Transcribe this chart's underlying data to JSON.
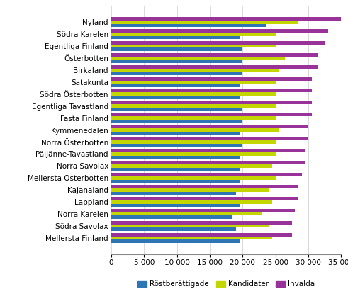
{
  "regions": [
    "Nyland",
    "Södra Karelen",
    "Egentliga Finland",
    "Österbotten",
    "Birkaland",
    "Satakunta",
    "Södra Österbotten",
    "Egentliga Tavastland",
    "Fasta Finland",
    "Kymmenedalen",
    "Norra Österbotten",
    "Päijänne-Tavastland",
    "Norra Savolax",
    "Mellersta Österbotten",
    "Kajanaland",
    "Lappland",
    "Norra Karelen",
    "Södra Savolax",
    "Mellersta Finland"
  ],
  "rostberättigade": [
    23500,
    19500,
    20000,
    20000,
    20000,
    19500,
    19500,
    20000,
    20000,
    19500,
    20000,
    19500,
    19500,
    19500,
    19000,
    19500,
    18500,
    19000,
    19500
  ],
  "kandidater": [
    28500,
    25000,
    25000,
    26500,
    25500,
    25000,
    25000,
    25000,
    25000,
    25500,
    25000,
    25000,
    24500,
    25000,
    24000,
    24500,
    23000,
    24000,
    24500
  ],
  "invalda": [
    35000,
    33000,
    32500,
    31500,
    31500,
    30500,
    30500,
    30500,
    30500,
    30000,
    30000,
    29500,
    29500,
    29000,
    28500,
    28500,
    28000,
    27500,
    27500
  ],
  "color_rostberättigade": "#2E75B6",
  "color_kandidater": "#C4D600",
  "color_invalda": "#993399",
  "xlim": [
    0,
    35000
  ],
  "xticks": [
    0,
    5000,
    10000,
    15000,
    20000,
    25000,
    30000,
    35000
  ],
  "xtick_labels": [
    "0",
    "5 000",
    "10 000",
    "15 000",
    "20 000",
    "25 000",
    "30 000",
    "35 000"
  ],
  "legend_labels": [
    "Röstberättigade",
    "Kandidater",
    "Invalda"
  ],
  "bar_height": 0.28,
  "font_size": 7.5,
  "background_color": "#ffffff"
}
